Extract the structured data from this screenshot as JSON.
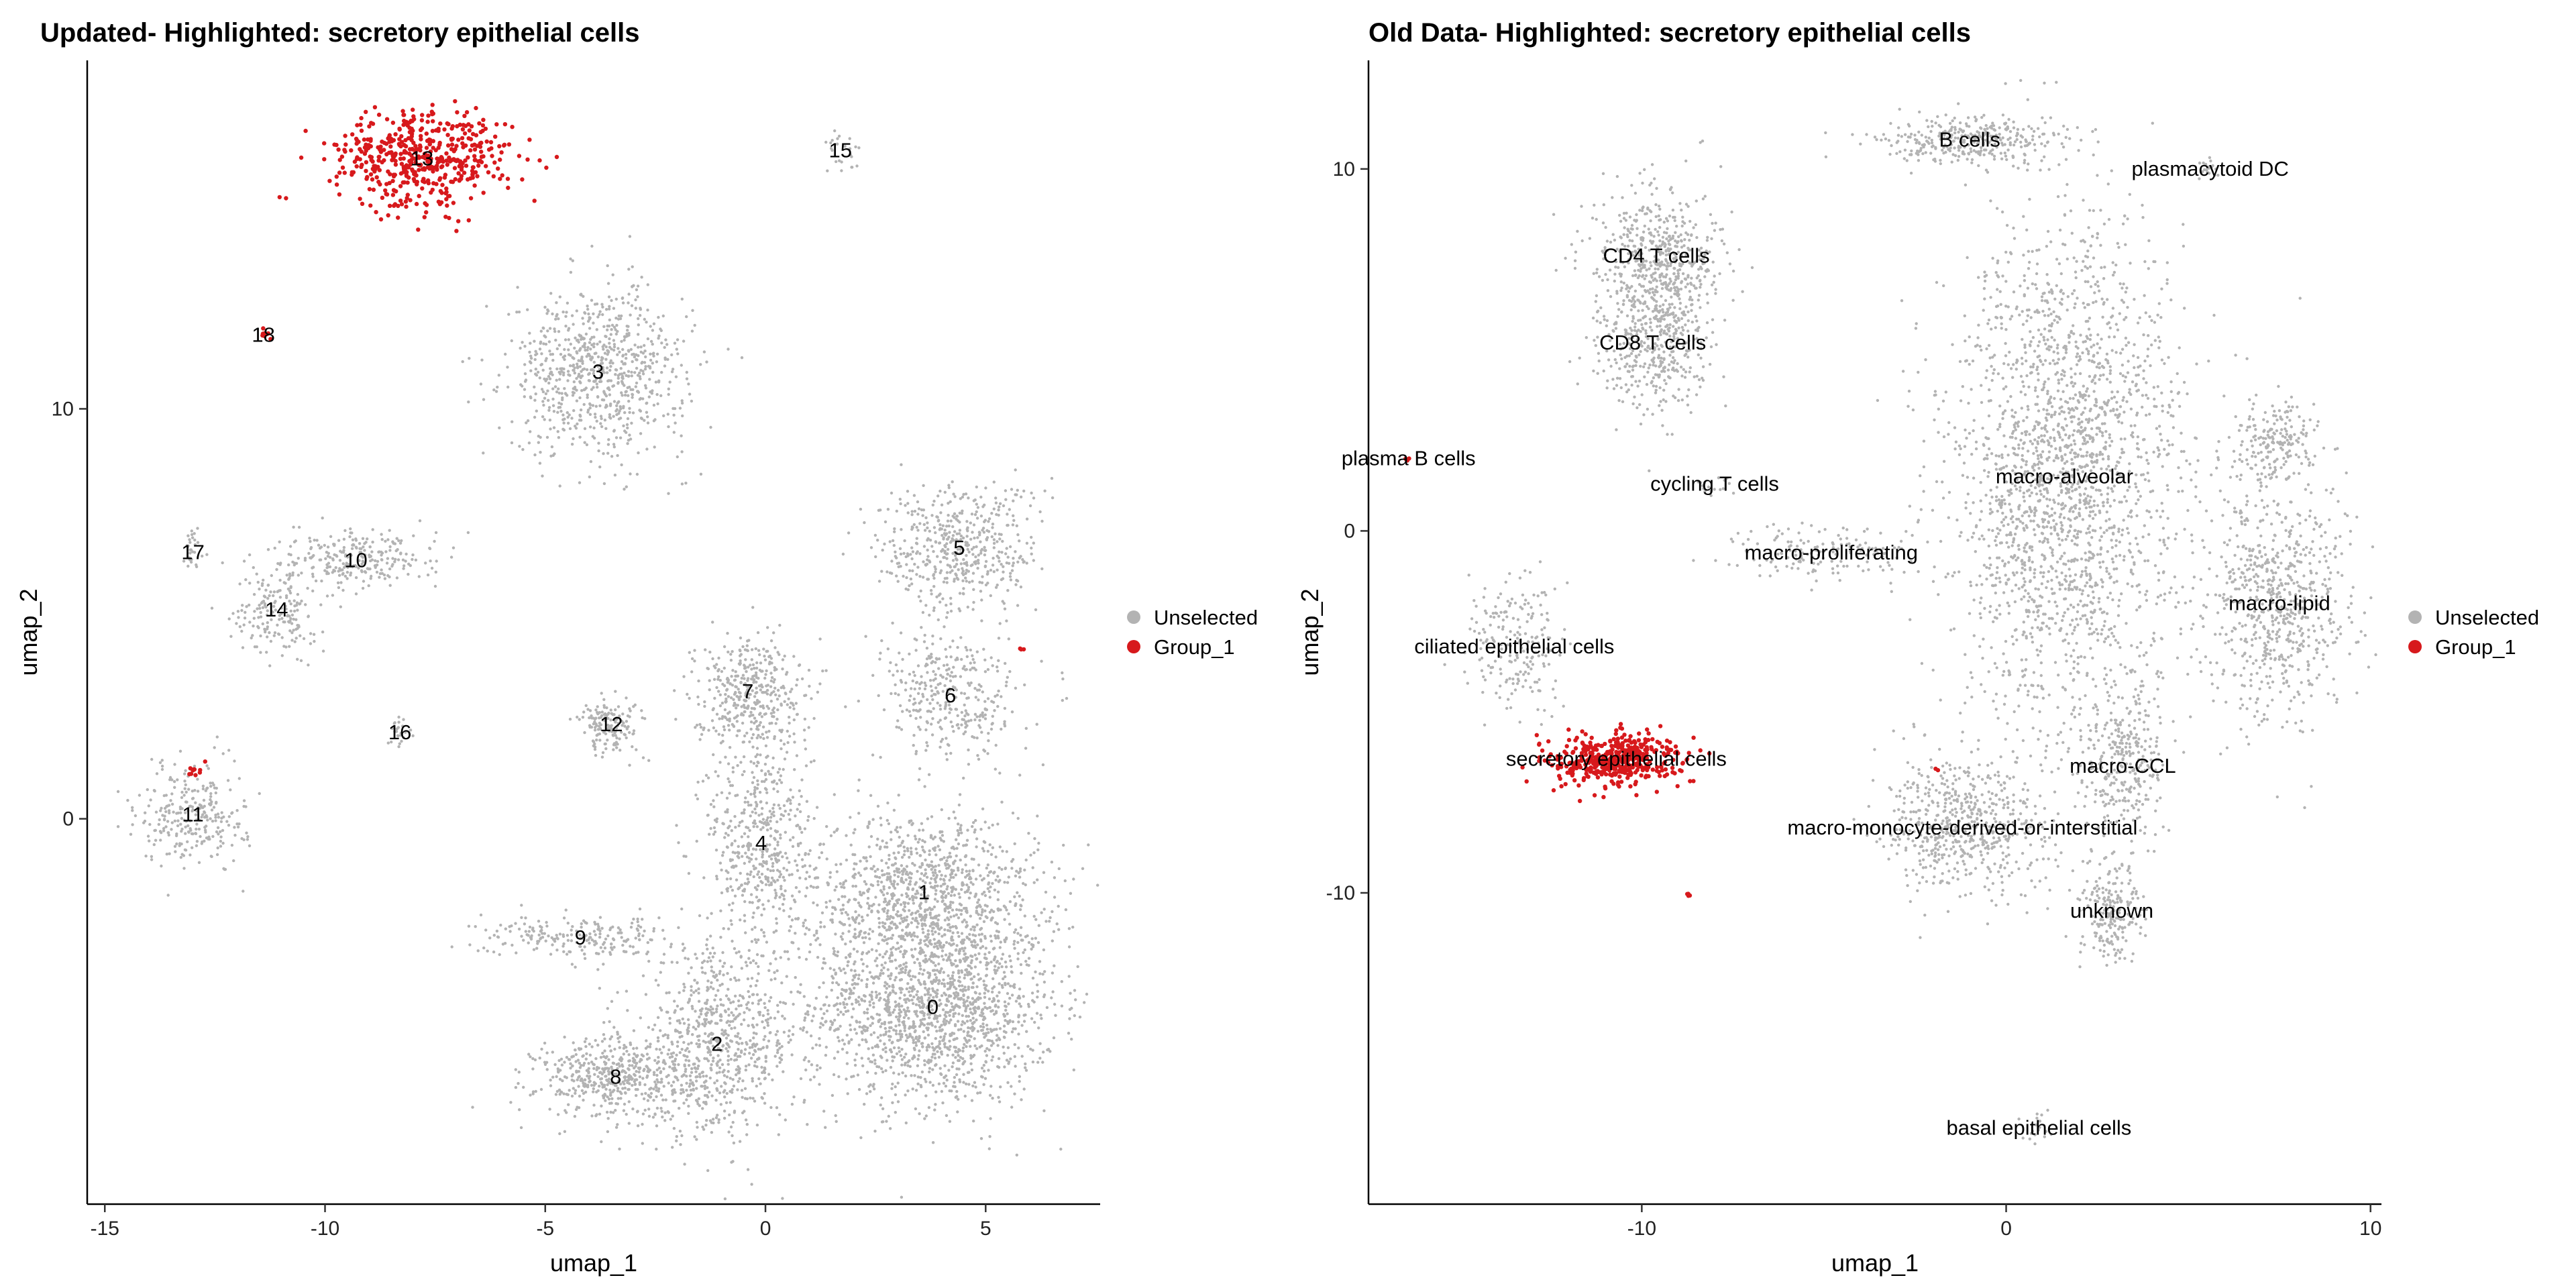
{
  "chart_data": [
    {
      "type": "scatter",
      "title": "Updated- Highlighted: secretory epithelial cells",
      "xlabel": "umap_1",
      "ylabel": "umap_2",
      "xlim": [
        -15.4,
        7.6
      ],
      "ylim": [
        -9.4,
        18.5
      ],
      "xticks": [
        -15,
        -10,
        -5,
        0,
        5
      ],
      "yticks": [
        0,
        10
      ],
      "grid": false,
      "legend_position": "right",
      "legend": [
        {
          "name": "Unselected",
          "color": "#b3b3b3"
        },
        {
          "name": "Group_1",
          "color": "#d7191c"
        }
      ],
      "series": [
        {
          "name": "Unselected",
          "color": "#b3b3b3",
          "clusters": [
            {
              "label": "0",
              "x": 3.8,
              "y": -4.6,
              "sx": 1.4,
              "sy": 1.2,
              "n": 1600
            },
            {
              "label": "1",
              "x": 3.6,
              "y": -1.8,
              "sx": 1.3,
              "sy": 1.0,
              "n": 1000
            },
            {
              "label": "2",
              "x": -1.1,
              "y": -5.5,
              "sx": 0.9,
              "sy": 1.1,
              "n": 700
            },
            {
              "label": "8",
              "x": -3.4,
              "y": -6.3,
              "sx": 0.9,
              "sy": 0.5,
              "n": 500
            },
            {
              "label": "3",
              "x": -3.8,
              "y": 10.9,
              "sx": 1.0,
              "sy": 1.0,
              "n": 800
            },
            {
              "label": "4",
              "x": -0.1,
              "y": -0.6,
              "sx": 0.6,
              "sy": 1.4,
              "n": 500
            },
            {
              "label": "7",
              "x": -0.4,
              "y": 3.1,
              "sx": 0.6,
              "sy": 0.7,
              "n": 400
            },
            {
              "label": "5",
              "x": 4.4,
              "y": 6.6,
              "sx": 0.9,
              "sy": 0.8,
              "n": 500
            },
            {
              "label": "6",
              "x": 4.2,
              "y": 3.0,
              "sx": 0.8,
              "sy": 0.8,
              "n": 350
            },
            {
              "label": "9",
              "x": -4.2,
              "y": -2.9,
              "sx": 1.1,
              "sy": 0.25,
              "n": 220
            },
            {
              "label": "10",
              "x": -9.3,
              "y": 6.3,
              "sx": 0.9,
              "sy": 0.35,
              "n": 260
            },
            {
              "label": "14",
              "x": -11.1,
              "y": 5.1,
              "sx": 0.45,
              "sy": 0.6,
              "n": 180
            },
            {
              "label": "11",
              "x": -13.0,
              "y": 0.1,
              "sx": 0.6,
              "sy": 0.6,
              "n": 280
            },
            {
              "label": "12",
              "x": -3.5,
              "y": 2.3,
              "sx": 0.35,
              "sy": 0.35,
              "n": 160
            },
            {
              "label": "17",
              "x": -13.0,
              "y": 6.5,
              "sx": 0.12,
              "sy": 0.25,
              "n": 30
            },
            {
              "label": "16",
              "x": -8.3,
              "y": 2.1,
              "sx": 0.2,
              "sy": 0.2,
              "n": 24
            },
            {
              "label": "15",
              "x": 1.7,
              "y": 16.3,
              "sx": 0.25,
              "sy": 0.25,
              "n": 24
            }
          ]
        },
        {
          "name": "Group_1",
          "color": "#d7191c",
          "clusters": [
            {
              "label": "13",
              "x": -7.8,
              "y": 16.1,
              "sx": 1.0,
              "sy": 0.6,
              "n": 500
            },
            {
              "label": "18",
              "x": -11.4,
              "y": 11.8,
              "sx": 0.08,
              "sy": 0.08,
              "n": 8
            },
            {
              "label": "",
              "x": -13.0,
              "y": 1.2,
              "sx": 0.1,
              "sy": 0.08,
              "n": 10
            },
            {
              "label": "",
              "x": 5.8,
              "y": 4.2,
              "sx": 0.05,
              "sy": 0.05,
              "n": 3
            }
          ]
        }
      ]
    },
    {
      "type": "scatter",
      "title": "Old Data- Highlighted: secretory epithelial cells",
      "xlabel": "umap_1",
      "ylabel": "umap_2",
      "xlim": [
        -17.5,
        10.3
      ],
      "ylim": [
        -18.6,
        13.0
      ],
      "xticks": [
        -10,
        0,
        10
      ],
      "yticks": [
        -10,
        0,
        10
      ],
      "grid": false,
      "legend_position": "right",
      "legend": [
        {
          "name": "Unselected",
          "color": "#b3b3b3"
        },
        {
          "name": "Group_1",
          "color": "#d7191c"
        }
      ],
      "series": [
        {
          "name": "Unselected",
          "color": "#b3b3b3",
          "clusters": [
            {
              "label": "macro-alveolar",
              "x": 1.6,
              "y": 1.5,
              "sx": 1.6,
              "sy": 3.5,
              "n": 2200
            },
            {
              "label": "macro-lipid",
              "x": 7.5,
              "y": -2.0,
              "sx": 1.0,
              "sy": 1.7,
              "n": 700
            },
            {
              "label": "macro-CCL",
              "x": 3.2,
              "y": -6.5,
              "sx": 0.6,
              "sy": 0.9,
              "n": 300
            },
            {
              "label": "macro-monocyte-derived-or-interstitial",
              "x": -1.2,
              "y": -8.2,
              "sx": 1.1,
              "sy": 1.0,
              "n": 600
            },
            {
              "label": "unknown",
              "x": 2.9,
              "y": -10.5,
              "sx": 0.45,
              "sy": 0.7,
              "n": 220
            },
            {
              "label": "B cells",
              "x": -1.0,
              "y": 10.8,
              "sx": 1.2,
              "sy": 0.35,
              "n": 350
            },
            {
              "label": "CD4 T cells",
              "x": -9.6,
              "y": 7.6,
              "sx": 0.9,
              "sy": 0.9,
              "n": 500
            },
            {
              "label": "CD8 T cells",
              "x": -9.7,
              "y": 5.2,
              "sx": 0.8,
              "sy": 1.0,
              "n": 450
            },
            {
              "label": "macro-proliferating",
              "x": -4.8,
              "y": -0.6,
              "sx": 1.4,
              "sy": 0.4,
              "n": 160
            },
            {
              "label": "ciliated epithelial cells",
              "x": -13.5,
              "y": -3.2,
              "sx": 0.6,
              "sy": 1.0,
              "n": 200
            },
            {
              "label": "plasmacytoid DC",
              "x": 5.6,
              "y": 10.0,
              "sx": 0.15,
              "sy": 0.15,
              "n": 18
            },
            {
              "label": "cycling T cells",
              "x": -8.0,
              "y": 1.3,
              "sx": 0.25,
              "sy": 0.15,
              "n": 18
            },
            {
              "label": "basal epithelial cells",
              "x": 0.9,
              "y": -16.5,
              "sx": 0.2,
              "sy": 0.2,
              "n": 18
            },
            {
              "label": "",
              "x": 7.3,
              "y": 2.4,
              "sx": 0.6,
              "sy": 0.6,
              "n": 200
            }
          ]
        },
        {
          "name": "Group_1",
          "color": "#d7191c",
          "clusters": [
            {
              "label": "secretory epithelial cells",
              "x": -10.7,
              "y": -6.3,
              "sx": 0.9,
              "sy": 0.35,
              "n": 450
            },
            {
              "label": "plasma B cells",
              "x": -16.4,
              "y": 2.0,
              "sx": 0.03,
              "sy": 0.03,
              "n": 3
            },
            {
              "label": "",
              "x": -8.8,
              "y": -10.1,
              "sx": 0.06,
              "sy": 0.06,
              "n": 4
            },
            {
              "label": "",
              "x": -1.9,
              "y": -6.6,
              "sx": 0.04,
              "sy": 0.04,
              "n": 2
            }
          ]
        }
      ]
    }
  ]
}
